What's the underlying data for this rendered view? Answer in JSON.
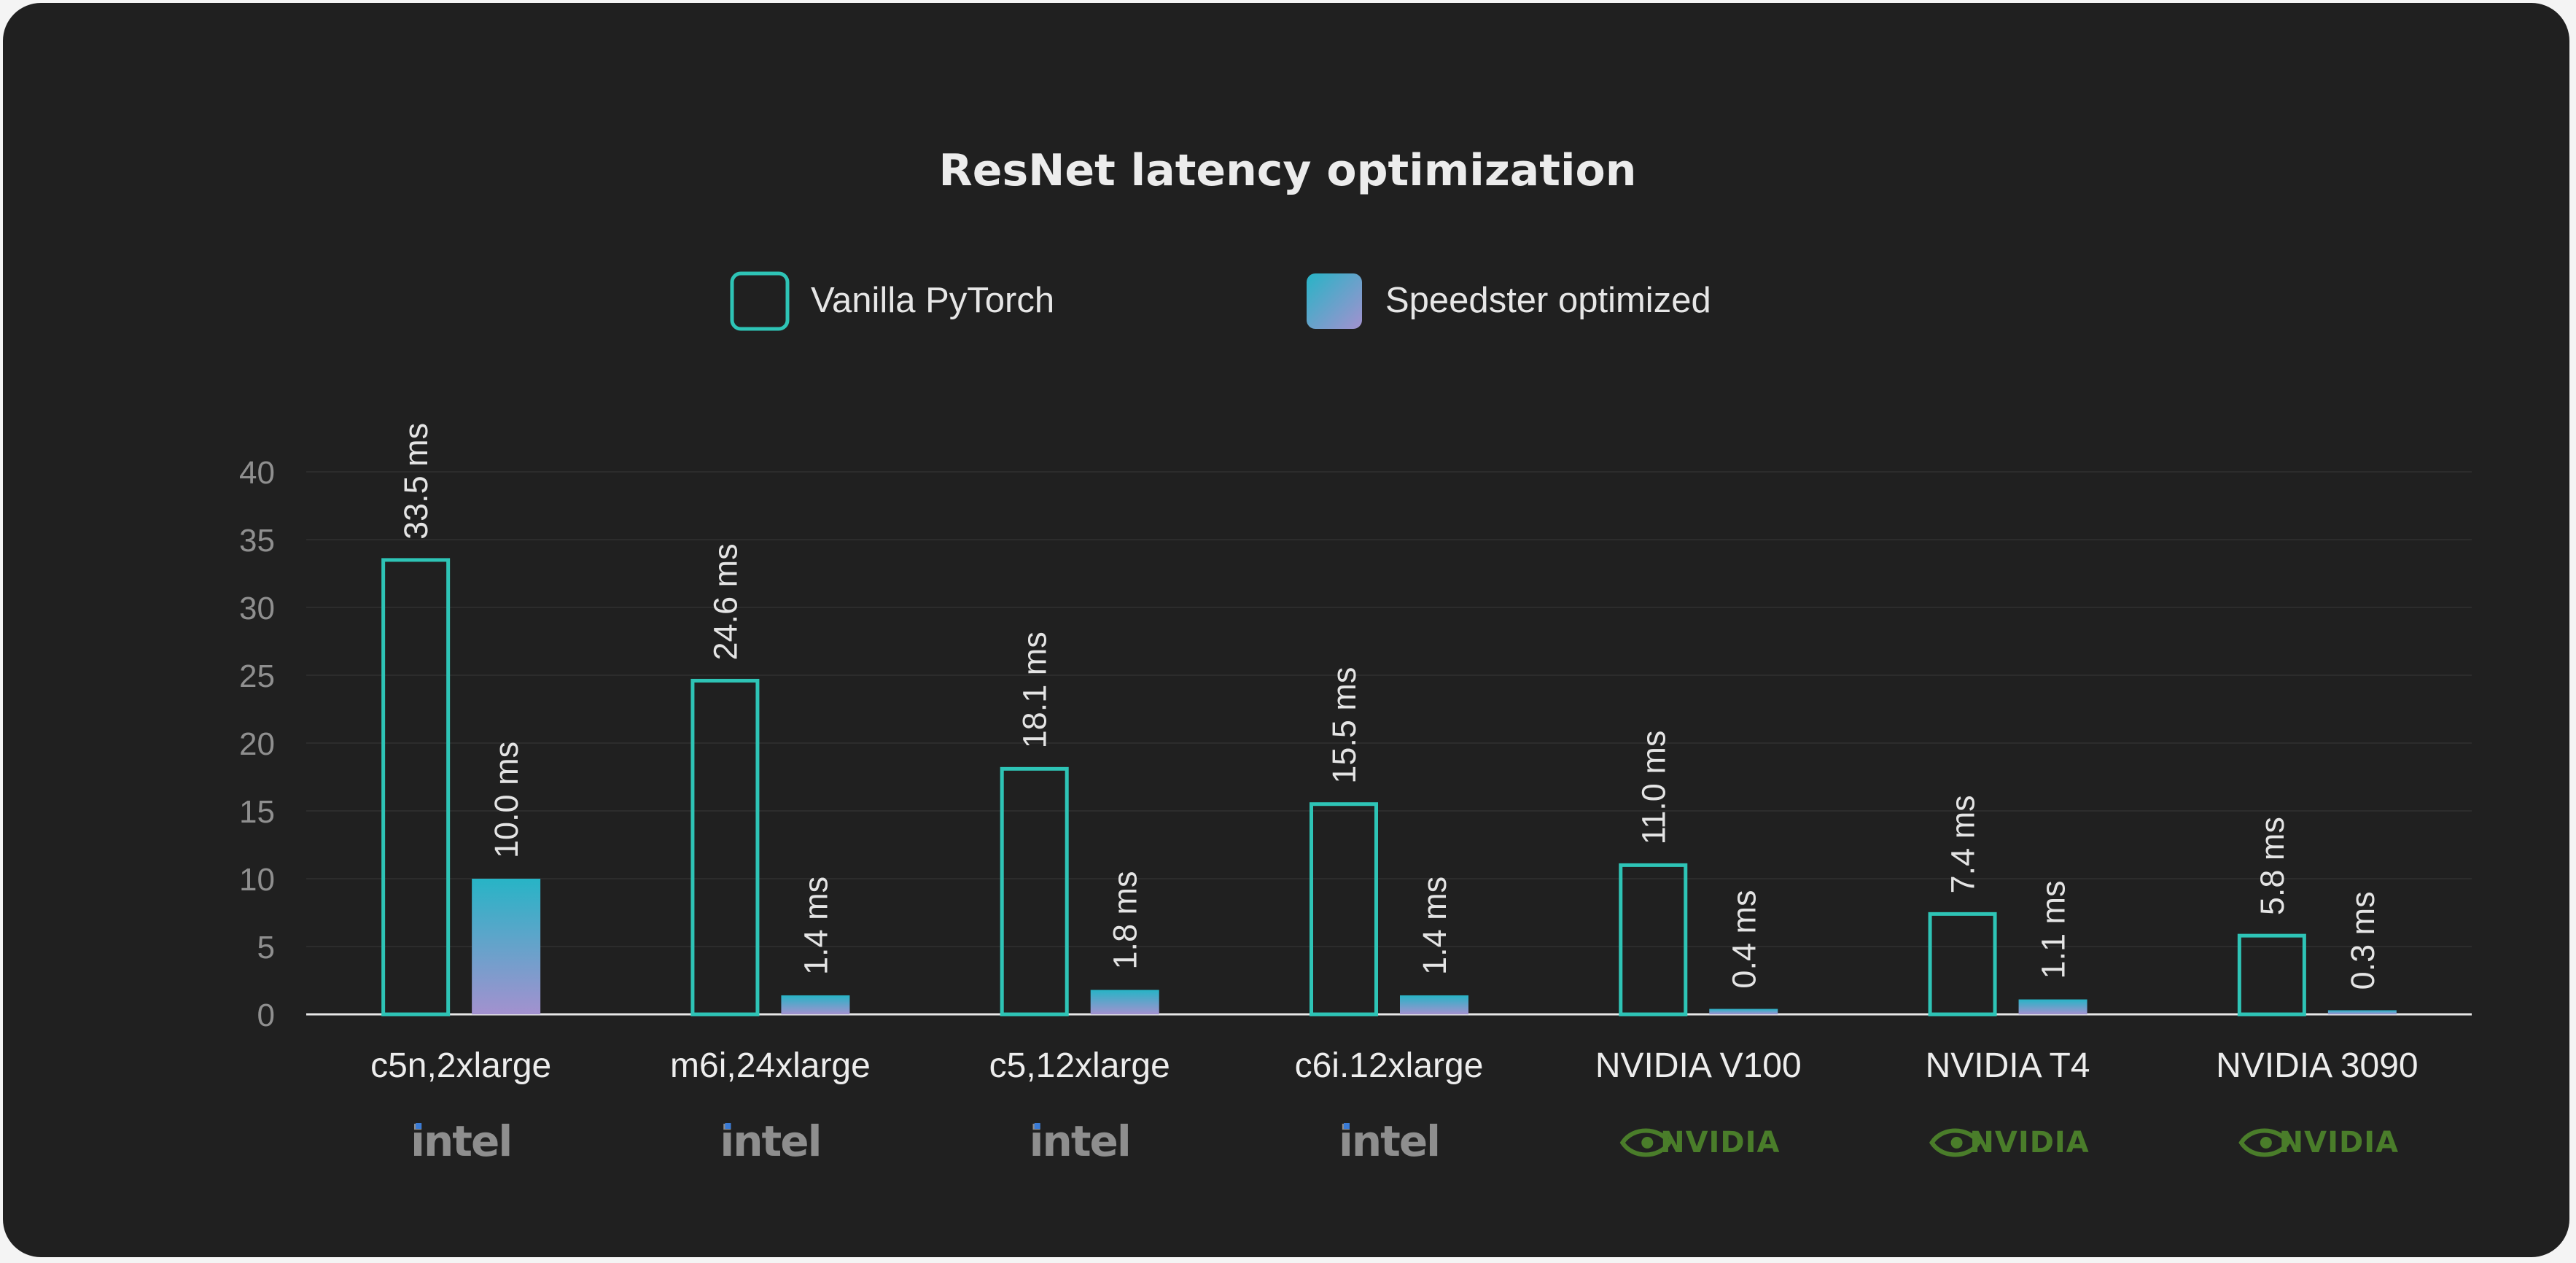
{
  "chart_data": {
    "type": "bar",
    "title": "ResNet latency optimization",
    "categories": [
      "c5n,2xlarge",
      "m6i,24xlarge",
      "c5,12xlarge",
      "c6i.12xlarge",
      "NVIDIA V100",
      "NVIDIA T4",
      "NVIDIA 3090"
    ],
    "vendors": [
      "intel",
      "intel",
      "intel",
      "intel",
      "NVIDIA",
      "NVIDIA",
      "NVIDIA"
    ],
    "series": [
      {
        "name": "Vanilla PyTorch",
        "values": [
          33.5,
          24.6,
          18.1,
          15.5,
          11.0,
          7.4,
          5.8
        ],
        "labels": [
          "33.5 ms",
          "24.6 ms",
          "18.1 ms",
          "15.5 ms",
          "11.0 ms",
          "7.4 ms",
          "5.8 ms"
        ],
        "style": "outline"
      },
      {
        "name": "Speedster optimized",
        "values": [
          10.0,
          1.4,
          1.8,
          1.4,
          0.4,
          1.1,
          0.3
        ],
        "labels": [
          "10.0 ms",
          "1.4 ms",
          "1.8 ms",
          "1.4 ms",
          "0.4 ms",
          "1.1 ms",
          "0.3 ms"
        ],
        "style": "gradient"
      }
    ],
    "ylim": [
      0,
      40
    ],
    "yticks": [
      "0",
      "5",
      "10",
      "15",
      "20",
      "25",
      "30",
      "35",
      "40"
    ],
    "grid": true,
    "legend_position": "top-center",
    "colors": {
      "background": "#202020",
      "outline": "#2ec4b6",
      "gradient_top": "#27b4c6",
      "gradient_bottom": "#a391cf",
      "grid": "#2c2c2c",
      "axis": "#e8e8e8",
      "intel_logo": "#8e8e8e",
      "nvidia_logo": "#4a7d2a"
    }
  }
}
